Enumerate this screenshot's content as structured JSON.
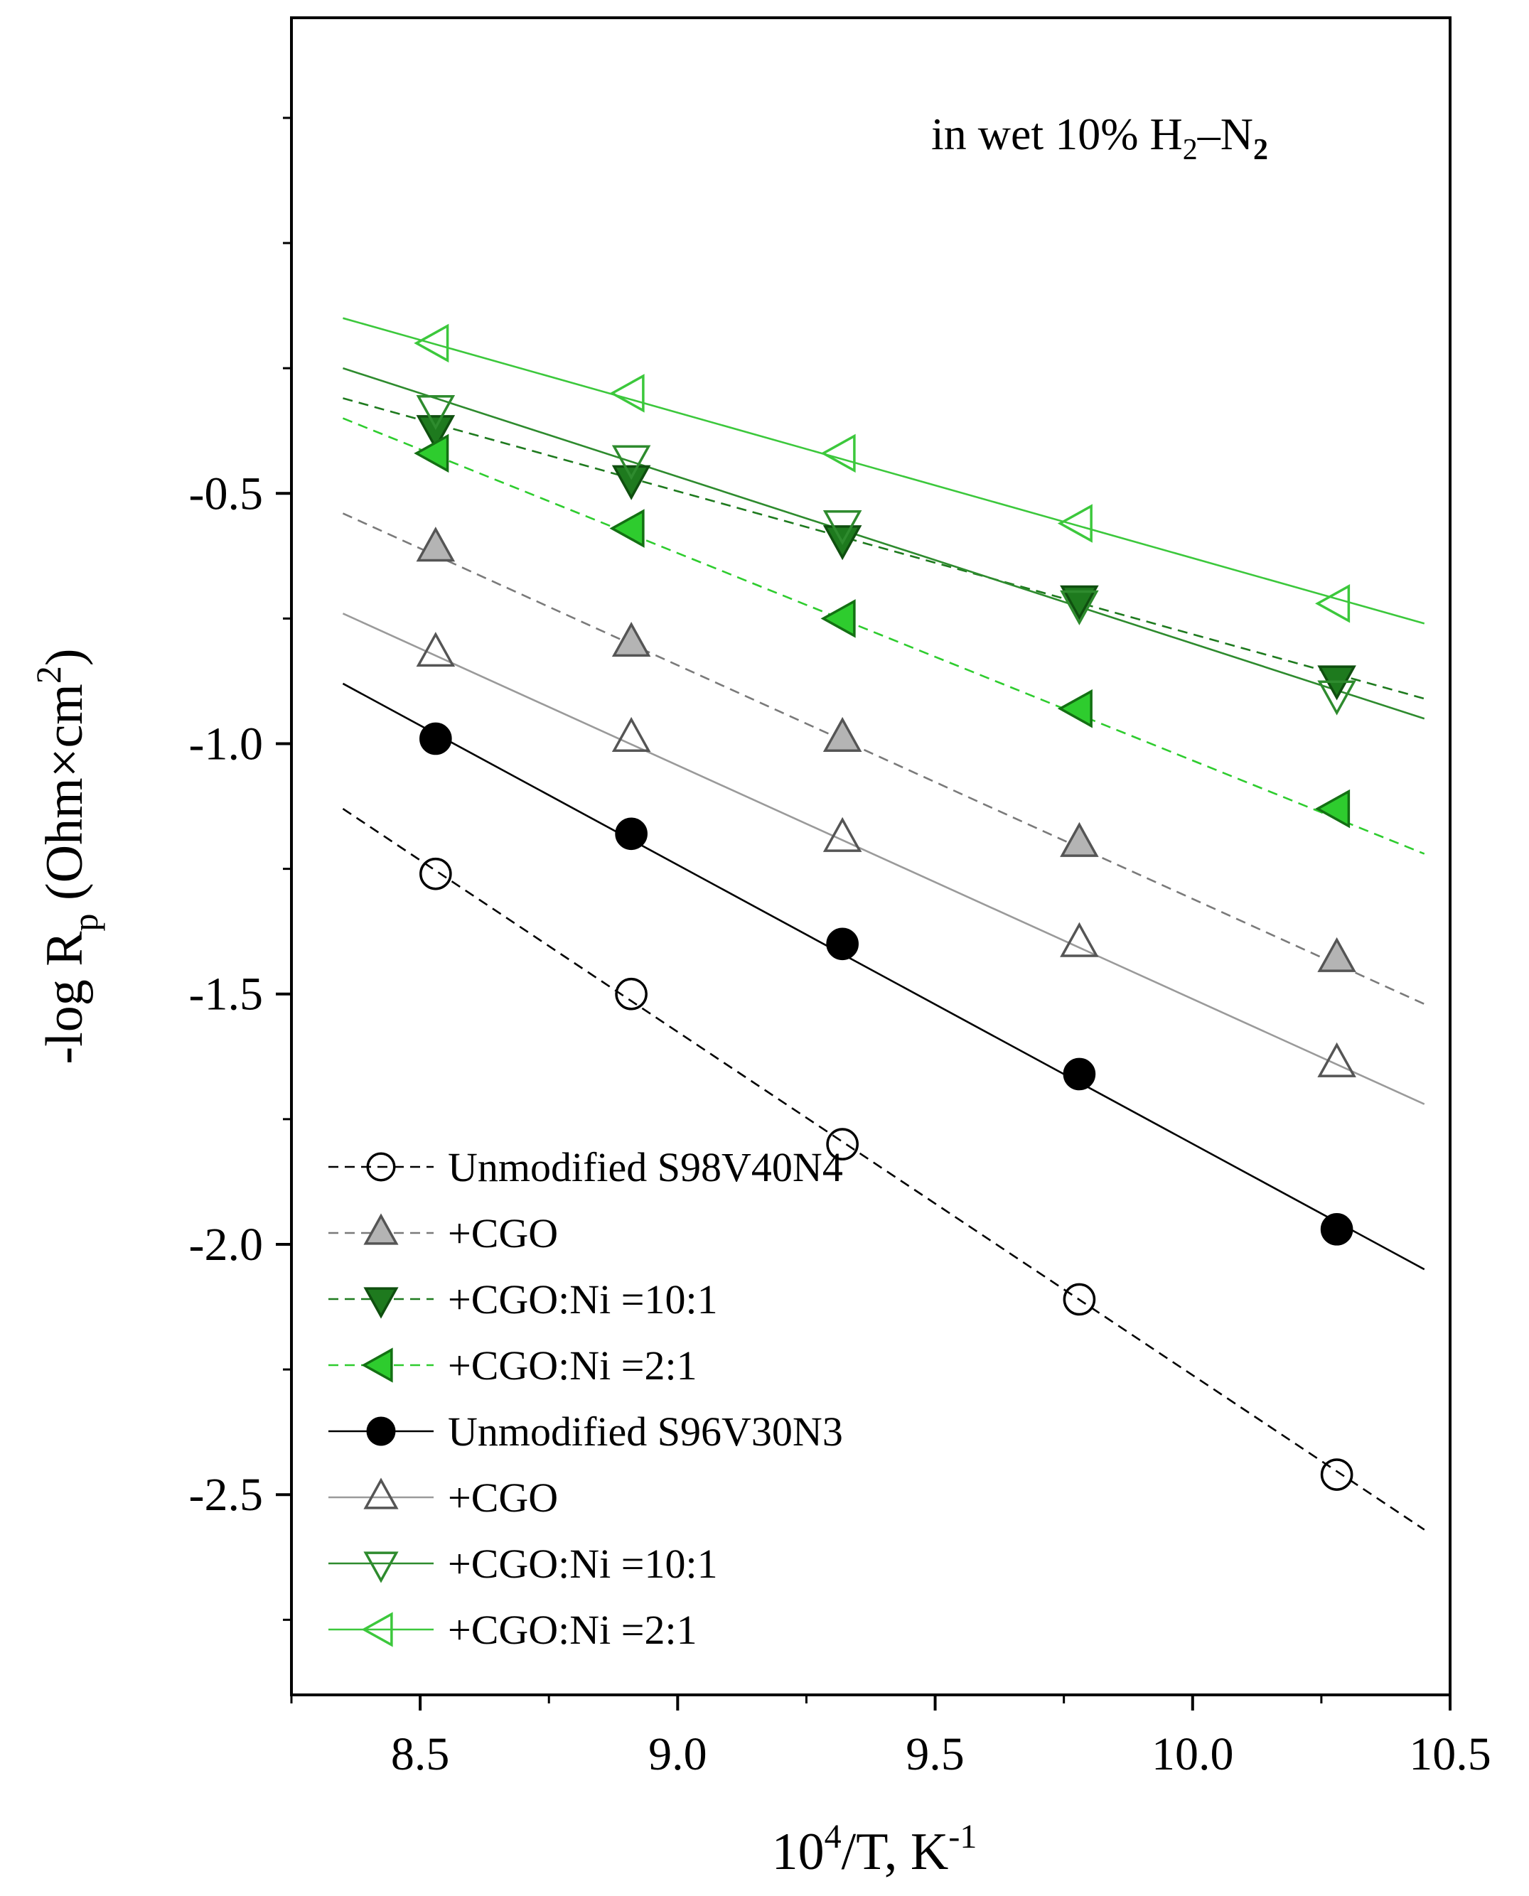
{
  "chart_data": {
    "type": "scatter",
    "annotation": {
      "prefix": "in wet 10% H",
      "sub1": "2",
      "dash": "–N",
      "sub2": "2"
    },
    "xlabel": {
      "base": "10",
      "sup": "4",
      "mid": "/T, K",
      "sup2": "-1"
    },
    "ylabel": {
      "prefix": "-log R",
      "sub": "p",
      "mid": " (Ohm×cm",
      "sup": "2",
      "suffix": ")"
    },
    "xlim": [
      8.25,
      10.5
    ],
    "ylim": [
      -2.9,
      0.45
    ],
    "xticks": [
      8.5,
      9.0,
      9.5,
      10.0,
      10.5
    ],
    "xtick_labels": [
      "8.5",
      "9.0",
      "9.5",
      "10.0",
      "10.5"
    ],
    "yticks": [
      -0.5,
      -1.0,
      -1.5,
      -2.0,
      -2.5
    ],
    "ytick_labels": [
      "-0.5",
      "-1.0",
      "-1.5",
      "-2.0",
      "-2.5"
    ],
    "fit_x_range": [
      8.35,
      10.45
    ],
    "series": [
      {
        "name": "Unmodified S98V40N4",
        "marker": "circle",
        "fill": "none",
        "stroke": "#000000",
        "line_color": "#000000",
        "dashed": true,
        "x": [
          8.53,
          8.91,
          9.32,
          9.78,
          10.28
        ],
        "y": [
          -1.26,
          -1.5,
          -1.8,
          -2.11,
          -2.46
        ]
      },
      {
        "name": "+CGO",
        "marker": "triangle-up",
        "fill": "#b4b4b4",
        "stroke": "#555555",
        "line_color": "#7a7a7a",
        "dashed": true,
        "x": [
          8.53,
          8.91,
          9.32,
          9.78,
          10.28
        ],
        "y": [
          -0.61,
          -0.8,
          -0.99,
          -1.2,
          -1.43
        ]
      },
      {
        "name": "+CGO:Ni =10:1",
        "marker": "triangle-down",
        "fill": "#1e7a1e",
        "stroke": "#0f4f0f",
        "line_color": "#1e7a1e",
        "dashed": true,
        "x": [
          8.53,
          8.91,
          9.32,
          9.78,
          10.28
        ],
        "y": [
          -0.37,
          -0.47,
          -0.59,
          -0.71,
          -0.87
        ]
      },
      {
        "name": "+CGO:Ni =2:1",
        "marker": "triangle-left",
        "fill": "#2ecc2e",
        "stroke": "#137013",
        "line_color": "#2ecc2e",
        "dashed": true,
        "x": [
          8.53,
          8.91,
          9.32,
          9.78,
          10.28
        ],
        "y": [
          -0.42,
          -0.57,
          -0.75,
          -0.93,
          -1.13
        ]
      },
      {
        "name": "Unmodified S96V30N3",
        "marker": "circle",
        "fill": "#000000",
        "stroke": "#000000",
        "line_color": "#000000",
        "dashed": false,
        "x": [
          8.53,
          8.91,
          9.32,
          9.78,
          10.28
        ],
        "y": [
          -0.99,
          -1.18,
          -1.4,
          -1.66,
          -1.97
        ]
      },
      {
        "name": "+CGO",
        "marker": "triangle-up",
        "fill": "none",
        "stroke": "#555555",
        "line_color": "#9a9a9a",
        "dashed": false,
        "x": [
          8.53,
          8.91,
          9.32,
          9.78,
          10.28
        ],
        "y": [
          -0.82,
          -0.99,
          -1.19,
          -1.4,
          -1.64
        ]
      },
      {
        "name": "+CGO:Ni =10:1",
        "marker": "triangle-down",
        "fill": "none",
        "stroke": "#2e8b2e",
        "line_color": "#2e8b2e",
        "dashed": false,
        "x": [
          8.53,
          8.91,
          9.32,
          9.78,
          10.28
        ],
        "y": [
          -0.33,
          -0.43,
          -0.56,
          -0.72,
          -0.9
        ]
      },
      {
        "name": "+CGO:Ni =2:1",
        "marker": "triangle-left",
        "fill": "none",
        "stroke": "#3cc83c",
        "line_color": "#3cc83c",
        "dashed": false,
        "x": [
          8.53,
          8.91,
          9.32,
          9.78,
          10.28
        ],
        "y": [
          -0.2,
          -0.3,
          -0.42,
          -0.56,
          -0.72
        ]
      }
    ],
    "fit_lines": [
      {
        "y_at_start": -1.13,
        "y_at_end": -2.57
      },
      {
        "y_at_start": -0.54,
        "y_at_end": -1.52
      },
      {
        "y_at_start": -0.31,
        "y_at_end": -0.91
      },
      {
        "y_at_start": -0.35,
        "y_at_end": -1.22
      },
      {
        "y_at_start": -0.88,
        "y_at_end": -2.05
      },
      {
        "y_at_start": -0.74,
        "y_at_end": -1.72
      },
      {
        "y_at_start": -0.25,
        "y_at_end": -0.95
      },
      {
        "y_at_start": -0.15,
        "y_at_end": -0.76
      }
    ],
    "grid": false,
    "legend_placement": "bottom-left"
  }
}
